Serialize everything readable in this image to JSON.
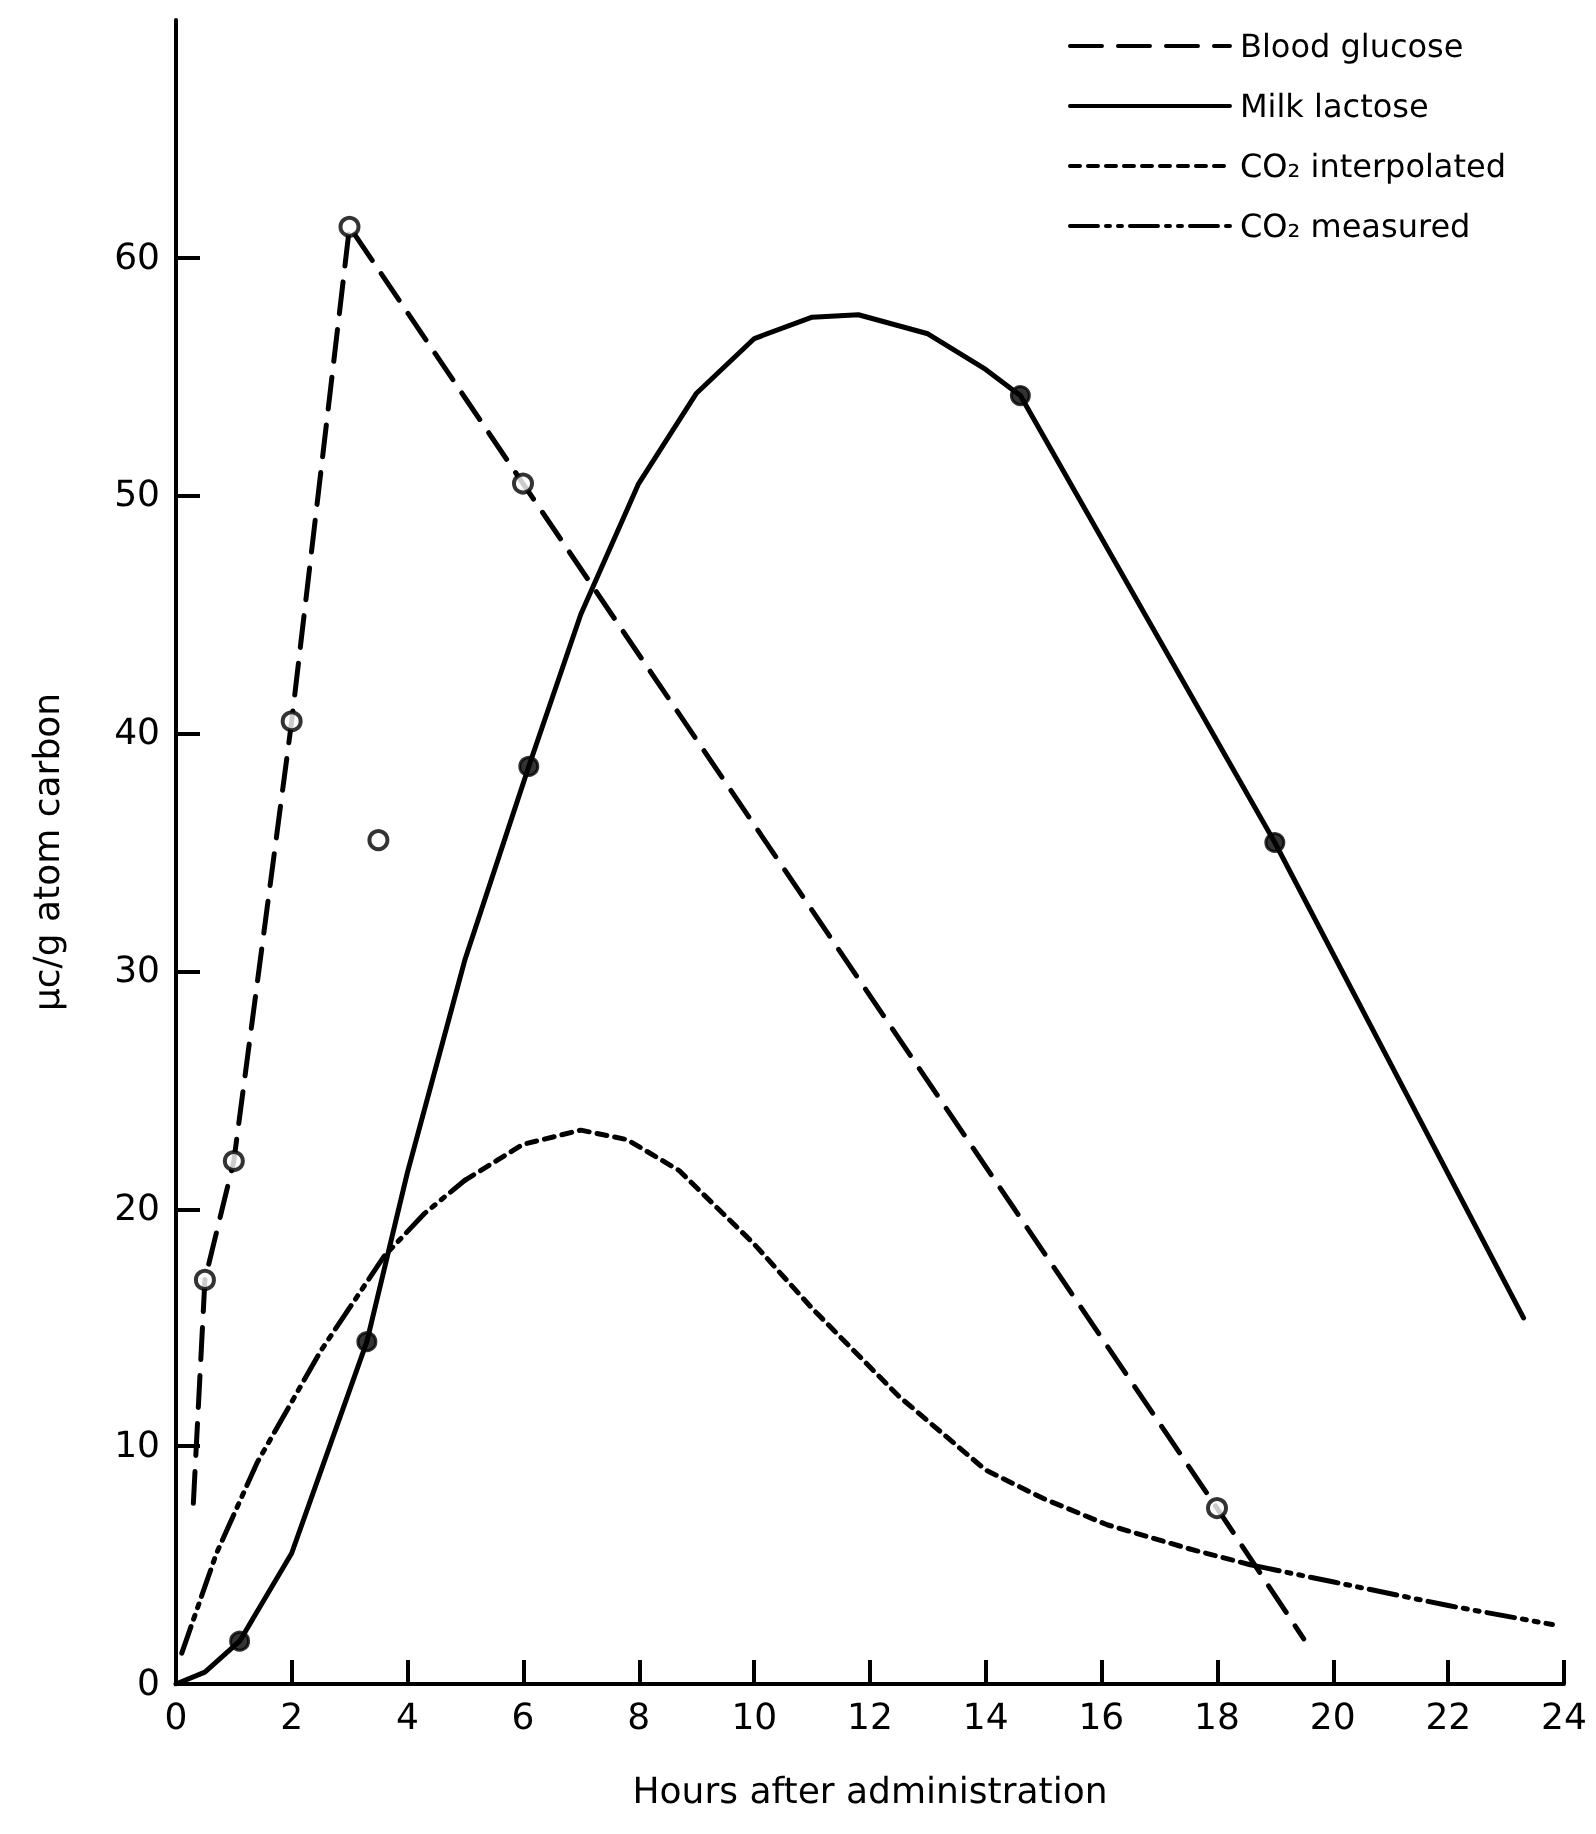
{
  "chart_data": {
    "type": "line",
    "xlabel": "Hours after administration",
    "ylabel": "μc/g atom carbon",
    "xlim": [
      0,
      24
    ],
    "xticks": [
      0,
      2,
      4,
      6,
      8,
      10,
      12,
      14,
      16,
      18,
      20,
      22,
      24
    ],
    "ylim": [
      0,
      70
    ],
    "yticks": [
      0,
      10,
      20,
      30,
      40,
      50,
      60
    ],
    "grid": false,
    "legend": "top right",
    "series": [
      {
        "name": "Blood glucose",
        "color": "#000000",
        "line_style": "dashed",
        "marker": "none",
        "x": [
          0.3,
          0.5,
          1,
          2,
          3,
          6,
          18,
          19.5
        ],
        "values": [
          7.6,
          17,
          22,
          40.5,
          61.3,
          50.5,
          7.4,
          1.9
        ]
      },
      {
        "type": "scatter",
        "color": "#000000",
        "marker": "emptyCircle",
        "x": [
          0.5,
          1,
          2,
          3,
          3.5,
          6,
          18
        ],
        "values": [
          17,
          22,
          40.5,
          61.3,
          35.5,
          50.5,
          7.4
        ]
      },
      {
        "name": "Milk lactose",
        "color": "#000000",
        "line_style": "solid",
        "marker": "none",
        "x": [
          0,
          0.5,
          1.1,
          2,
          3.3,
          4,
          5,
          6.1,
          7,
          8,
          9,
          10,
          11,
          11.8,
          13,
          14,
          14.6,
          19,
          23.3
        ],
        "values": [
          0,
          0.5,
          1.8,
          5.5,
          14.4,
          21.5,
          30.5,
          38.6,
          45,
          50.5,
          54.3,
          56.6,
          57.5,
          57.6,
          56.8,
          55.3,
          54.2,
          35.4,
          15.4
        ]
      },
      {
        "type": "scatter",
        "color": "#000000",
        "marker": "circle",
        "x": [
          1.1,
          3.3,
          6.1,
          14.6,
          19
        ],
        "values": [
          1.8,
          14.4,
          38.6,
          54.2,
          35.4
        ]
      },
      {
        "name": "CO₂ interpolated",
        "color": "#000000",
        "line_style": "dotted",
        "marker": "none",
        "x": [
          5,
          6,
          7,
          7.8,
          8.7,
          10,
          11,
          12.5,
          14,
          15,
          16.1,
          17.5,
          18.6
        ],
        "values": [
          21.2,
          22.7,
          23.3,
          22.9,
          21.6,
          18.5,
          15.8,
          12.1,
          9,
          7.8,
          6.7,
          5.7,
          5
        ]
      },
      {
        "name": "CO₂ measured",
        "color": "#000000",
        "line_style": "dashdotdot",
        "marker": "none",
        "x": [
          0.1,
          0.7,
          1.4,
          2.5,
          3.6,
          4.3,
          5,
          12,
          18.6,
          20,
          22,
          23.8
        ],
        "values": [
          1.3,
          5.5,
          9.3,
          14,
          18,
          19.8,
          21.2,
          null,
          5,
          4.3,
          3.3,
          2.5
        ]
      }
    ]
  }
}
